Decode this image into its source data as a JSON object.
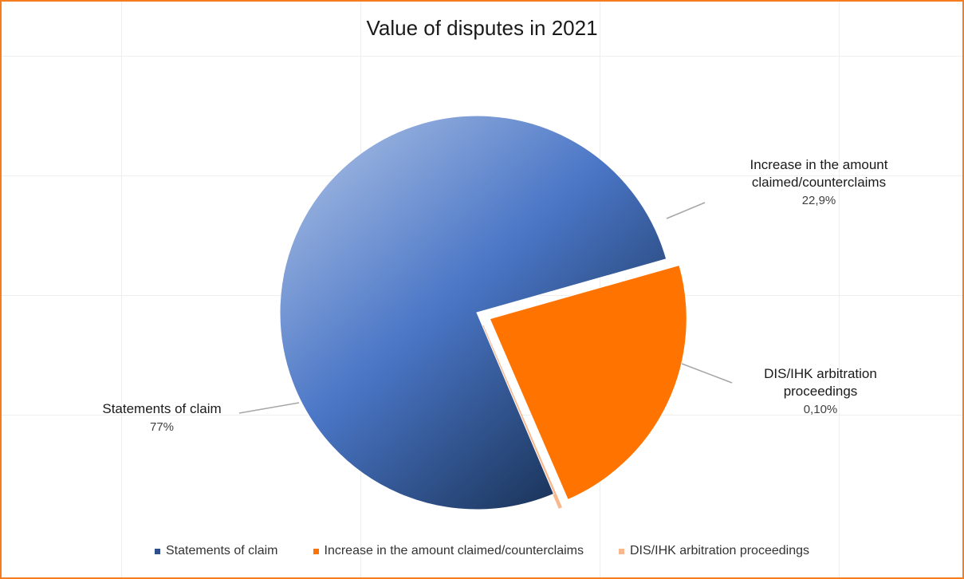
{
  "chart_data": {
    "type": "pie",
    "title": "Value of disputes in 2021",
    "slices": [
      {
        "name": "Statements of claim",
        "value": 77,
        "display": "77%",
        "color": "#4472C4",
        "exploded": false,
        "label_lines": [
          "Statements of claim"
        ]
      },
      {
        "name": "Increase in the amount claimed/counterclaims",
        "value": 22.9,
        "display": "22,9%",
        "color": "#FF7400",
        "exploded": true,
        "label_lines": [
          "Increase in the amount",
          "claimed/counterclaims"
        ]
      },
      {
        "name": "DIS/IHK arbitration proceedings",
        "value": 0.1,
        "display": "0,10%",
        "color": "#F8B88B",
        "exploded": true,
        "label_lines": [
          "DIS/IHK arbitration",
          "proceedings"
        ]
      }
    ],
    "legend": {
      "position": "bottom"
    },
    "data_labels": {
      "show_category": true,
      "show_percent": true,
      "leader_lines": true
    }
  }
}
